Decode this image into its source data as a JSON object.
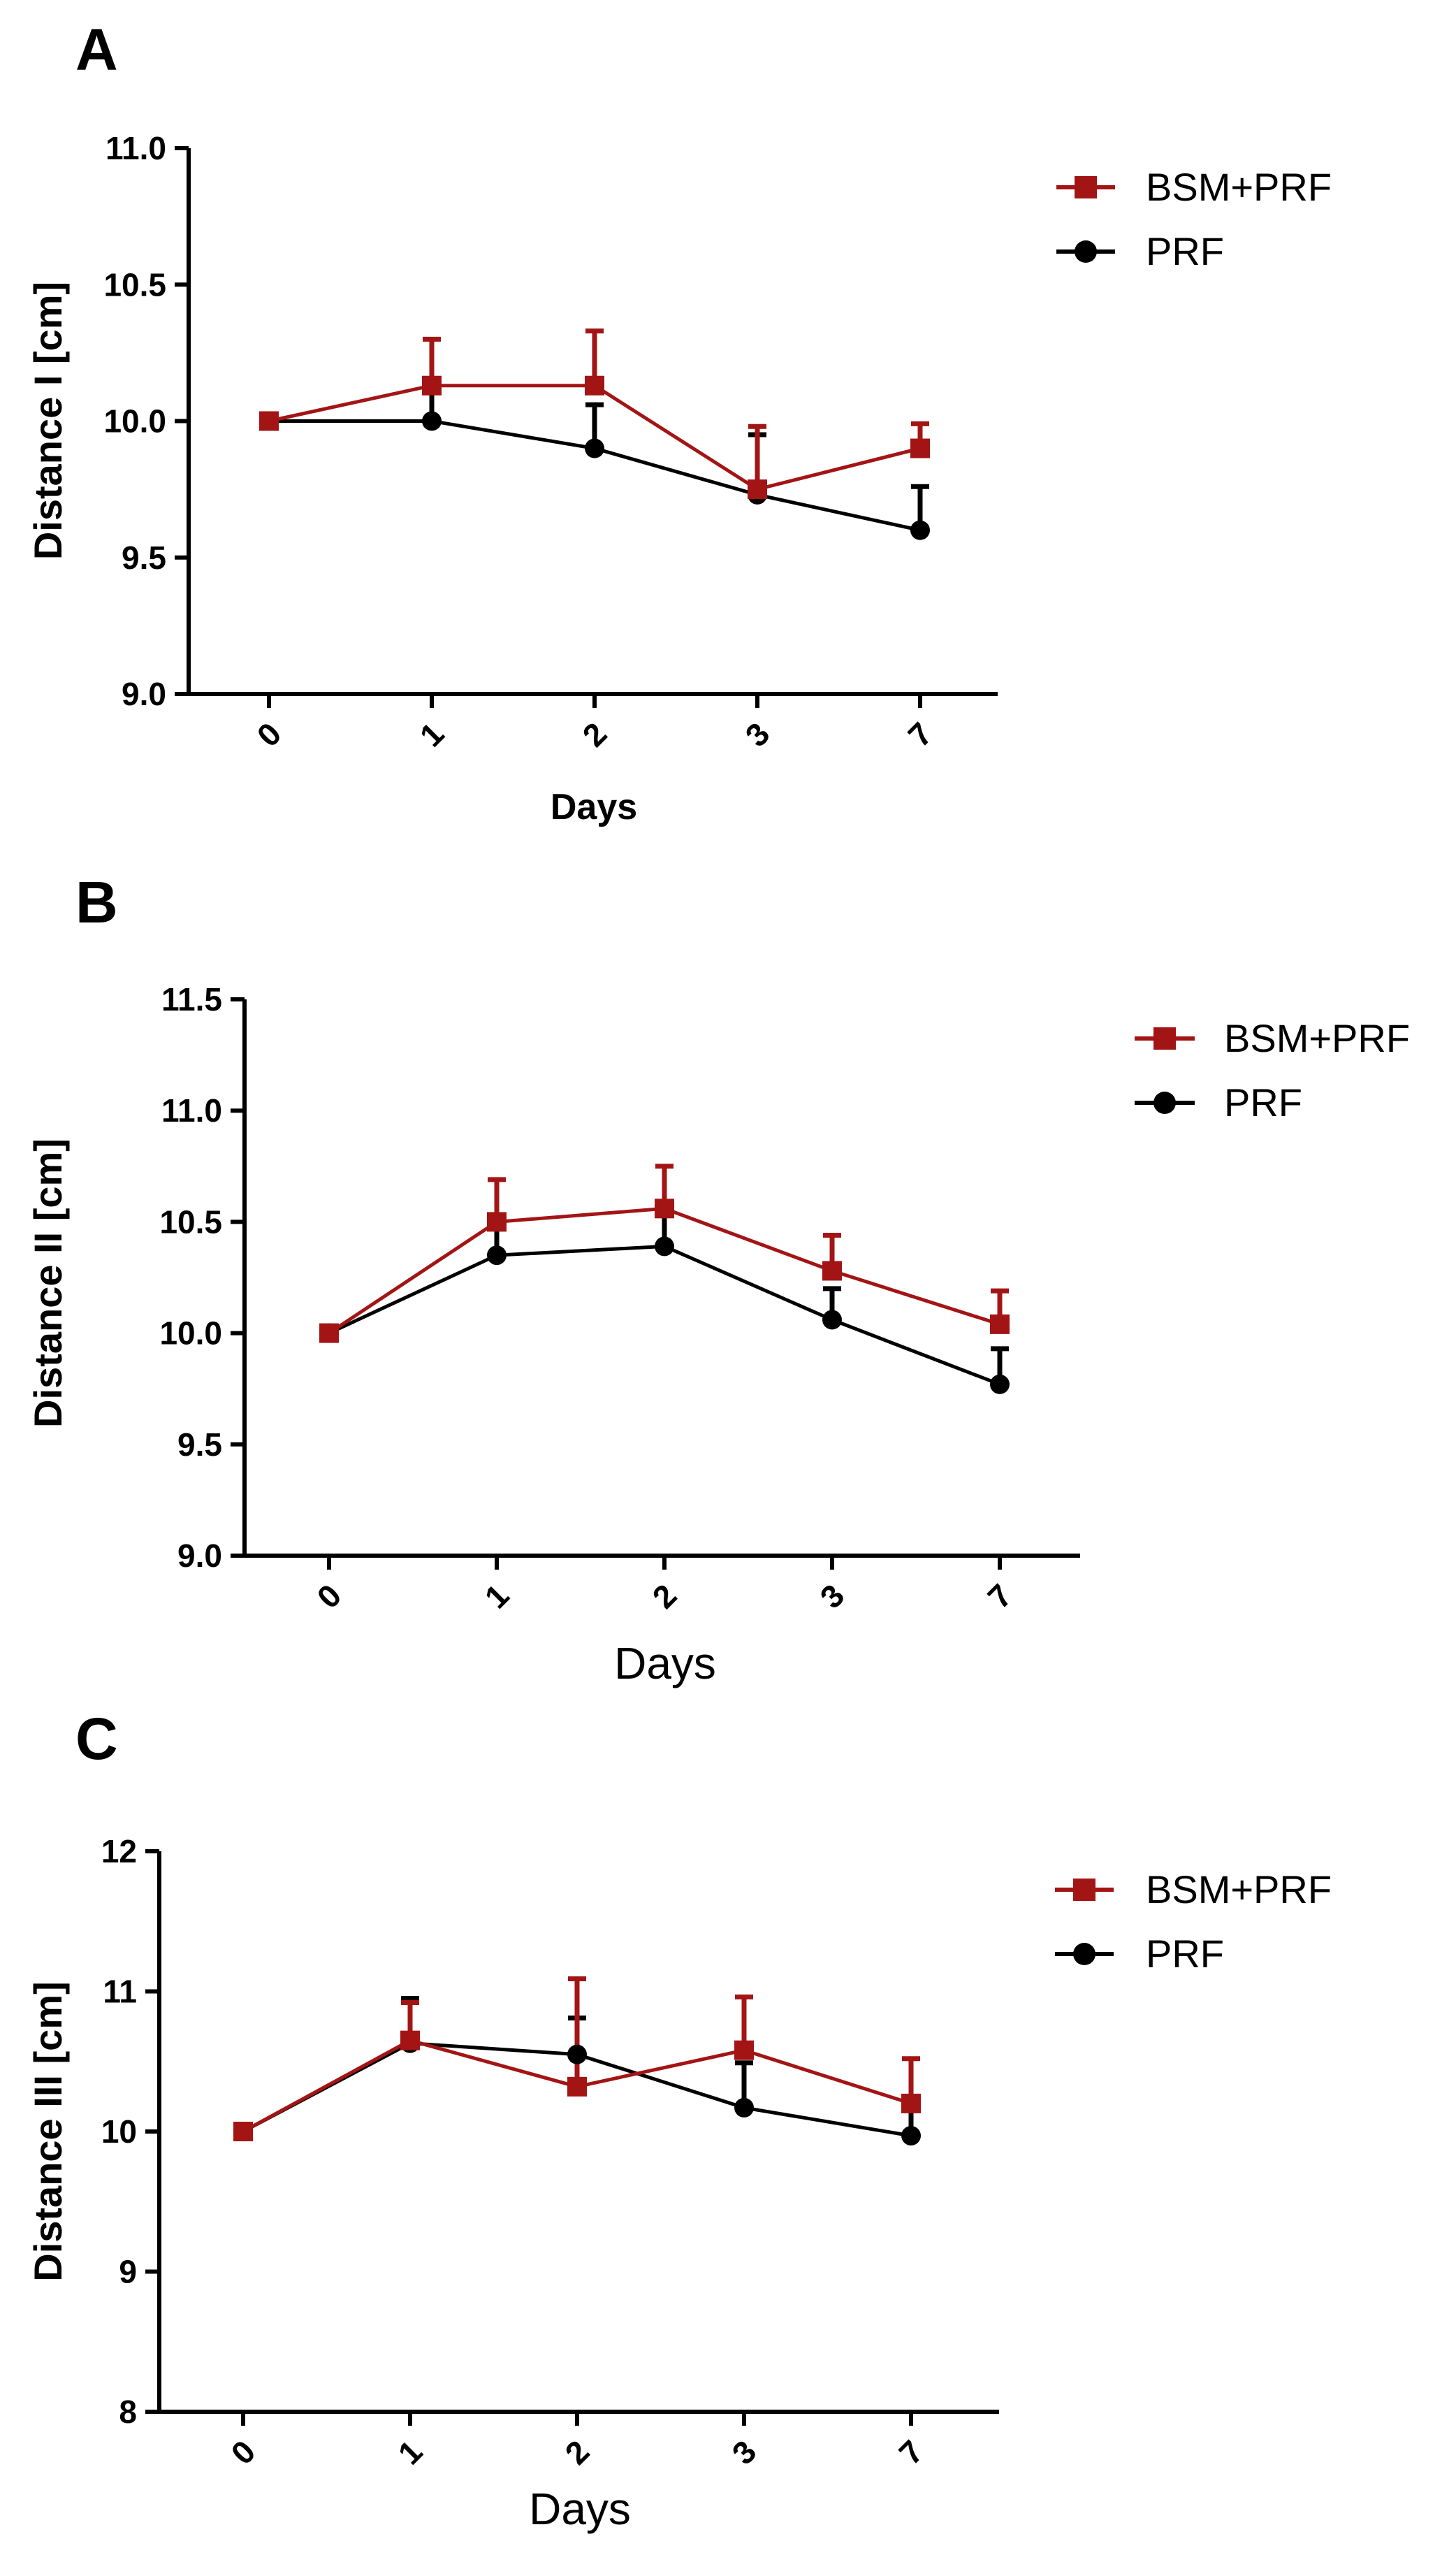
{
  "colors": {
    "bsm_prf": "#a31515",
    "prf": "#000000"
  },
  "chart_data": [
    {
      "type": "line",
      "panel": "A",
      "title": "",
      "xlabel": "Days",
      "ylabel": "Distance I [cm]",
      "categories": [
        "0",
        "1",
        "2",
        "3",
        "7"
      ],
      "ylim": [
        9.0,
        11.0
      ],
      "yticks": [
        "9.0",
        "9.5",
        "10.0",
        "10.5",
        "11.0"
      ],
      "grid": false,
      "legend": "top-right",
      "series": [
        {
          "name": "BSM+PRF",
          "color": "#a31515",
          "marker": "square",
          "values": [
            10.0,
            10.13,
            10.13,
            9.75,
            9.9
          ],
          "errors": [
            0,
            0.17,
            0.2,
            0.23,
            0.09
          ]
        },
        {
          "name": "PRF",
          "color": "#000000",
          "marker": "circle",
          "values": [
            10.0,
            10.0,
            9.9,
            9.73,
            9.6
          ],
          "errors": [
            0,
            0.12,
            0.16,
            0.22,
            0.16
          ]
        }
      ]
    },
    {
      "type": "line",
      "panel": "B",
      "title": "",
      "xlabel": "Days",
      "ylabel": "Distance II [cm]",
      "categories": [
        "0",
        "1",
        "2",
        "3",
        "7"
      ],
      "ylim": [
        9.0,
        11.5
      ],
      "yticks": [
        "9.0",
        "9.5",
        "10.0",
        "10.5",
        "11.0",
        "11.5"
      ],
      "grid": false,
      "legend": "top-right",
      "series": [
        {
          "name": "BSM+PRF",
          "color": "#a31515",
          "marker": "square",
          "values": [
            10.0,
            10.5,
            10.56,
            10.28,
            10.04
          ],
          "errors": [
            0,
            0.19,
            0.19,
            0.16,
            0.15
          ]
        },
        {
          "name": "PRF",
          "color": "#000000",
          "marker": "circle",
          "values": [
            10.0,
            10.35,
            10.39,
            10.06,
            9.77
          ],
          "errors": [
            0,
            0.13,
            0.16,
            0.14,
            0.16
          ]
        }
      ]
    },
    {
      "type": "line",
      "panel": "C",
      "title": "",
      "xlabel": "Days",
      "ylabel": "Distance III [cm]",
      "categories": [
        "0",
        "1",
        "2",
        "3",
        "7"
      ],
      "ylim": [
        8,
        12
      ],
      "yticks": [
        "8",
        "9",
        "10",
        "11",
        "12"
      ],
      "grid": false,
      "legend": "top-right",
      "series": [
        {
          "name": "BSM+PRF",
          "color": "#a31515",
          "marker": "square",
          "values": [
            10.0,
            10.65,
            10.32,
            10.58,
            10.2
          ],
          "errors": [
            0,
            0.27,
            0.77,
            0.38,
            0.32
          ]
        },
        {
          "name": "PRF",
          "color": "#000000",
          "marker": "circle",
          "values": [
            10.0,
            10.63,
            10.55,
            10.17,
            9.97
          ],
          "errors": [
            0,
            0.32,
            0.26,
            0.32,
            0.26
          ]
        }
      ]
    }
  ]
}
